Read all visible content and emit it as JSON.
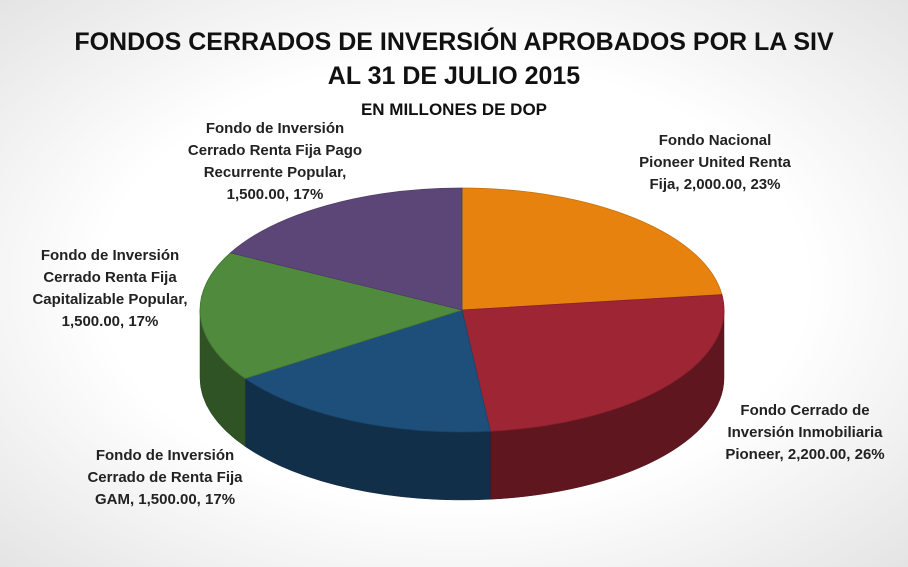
{
  "chart_data": {
    "type": "pie",
    "title": "FONDOS CERRADOS DE INVERSIÓN  APROBADOS POR LA SIV",
    "title_line2": "AL 31 DE JULIO 2015",
    "subtitle": "EN MILLONES DE DOP",
    "categories": [
      "Fondo Nacional Pioneer United Renta Fija",
      "Fondo Cerrado de Inversión Inmobiliaria Pioneer",
      "Fondo de Inversión Cerrado Renta Fija Pago Recurrente Popular",
      "Fondo de Inversión Cerrado Renta Fija Capitalizable Popular",
      "Fondo de Inversión Cerrado de Renta Fija GAM"
    ],
    "values": [
      2000,
      2200,
      1500,
      1500,
      1500
    ],
    "value_labels": [
      "2,000.00",
      "2,200.00",
      "1,500.00",
      "1,500.00",
      "1,500.00"
    ],
    "percent_labels": [
      "23%",
      "26%",
      "17%",
      "17%",
      "17%"
    ],
    "label_separator": ", ",
    "colors": [
      "#e8820e",
      "#9e2534",
      "#1e4f7b",
      "#4f8a3d",
      "#5c4678"
    ]
  }
}
